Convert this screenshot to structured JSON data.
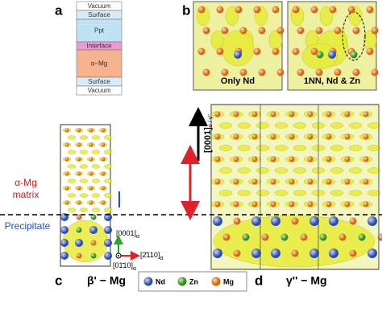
{
  "panel_a": {
    "label": "a",
    "layers": [
      "Vacuum",
      "Surface",
      "Ppt",
      "Interface",
      "α−Mg",
      "Surface",
      "Vacuum"
    ]
  },
  "panel_b": {
    "label": "b",
    "captions": [
      "Only Nd",
      "1NN, Nd & Zn"
    ]
  },
  "panel_c": {
    "label": "c",
    "title": "β' − Mg"
  },
  "panel_d": {
    "label": "d",
    "title": "γ'' − Mg",
    "arrow_label": "[0001]",
    "arrow_sub": "α / γ''"
  },
  "regions": {
    "matrix_1": "α-Mg",
    "matrix_2": "matrix",
    "precipitate": "Precipitate"
  },
  "axes": {
    "up": "[0001]",
    "up_sub": "α",
    "right": "[2̄110]",
    "right_sub": "α",
    "out": "[01̄10]",
    "out_sub": "α"
  },
  "legend": [
    "Nd",
    "Zn",
    "Mg"
  ]
}
